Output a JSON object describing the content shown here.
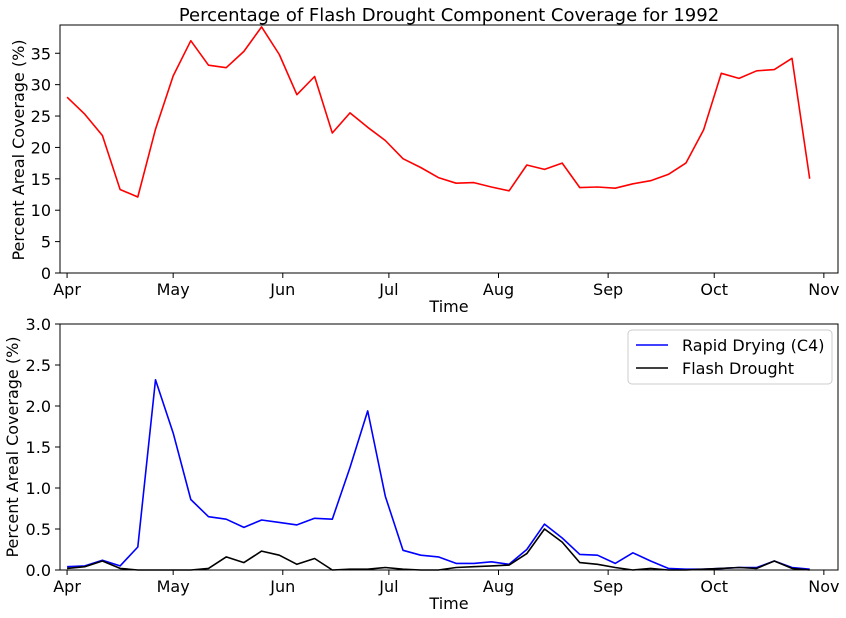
{
  "chart_data": [
    {
      "type": "line",
      "title": "Percentage of Flash Drought Component Coverage for 1992",
      "xlabel": "Time",
      "ylabel": "Percent Areal Coverage (%)",
      "x_tick_labels": [
        "Apr",
        "May",
        "Jun",
        "Jul",
        "Aug",
        "Sep",
        "Oct",
        "Nov"
      ],
      "xlim": [
        "1992-03-30",
        "1992-11-05"
      ],
      "ylim": [
        0,
        39.5
      ],
      "y_ticks": [
        0,
        5,
        10,
        15,
        20,
        25,
        30,
        35
      ],
      "grid": false,
      "series": [
        {
          "color": "#ff0000",
          "x": [
            "1992-04-01",
            "1992-04-06",
            "1992-04-11",
            "1992-04-16",
            "1992-04-21",
            "1992-04-26",
            "1992-05-01",
            "1992-05-06",
            "1992-05-11",
            "1992-05-16",
            "1992-05-21",
            "1992-05-26",
            "1992-05-31",
            "1992-06-05",
            "1992-06-10",
            "1992-06-15",
            "1992-06-20",
            "1992-06-25",
            "1992-06-30",
            "1992-07-05",
            "1992-07-10",
            "1992-07-15",
            "1992-07-20",
            "1992-07-25",
            "1992-07-30",
            "1992-08-04",
            "1992-08-09",
            "1992-08-14",
            "1992-08-19",
            "1992-08-24",
            "1992-08-29",
            "1992-09-03",
            "1992-09-08",
            "1992-09-13",
            "1992-09-18",
            "1992-09-23",
            "1992-09-28",
            "1992-10-03",
            "1992-10-08",
            "1992-10-13",
            "1992-10-18",
            "1992-10-23",
            "1992-10-28"
          ],
          "values": [
            28.0,
            25.3,
            21.9,
            13.3,
            12.1,
            22.9,
            31.4,
            37.0,
            33.1,
            32.7,
            35.3,
            39.2,
            34.8,
            28.4,
            31.3,
            22.3,
            25.5,
            23.2,
            21.1,
            18.2,
            16.8,
            15.2,
            14.3,
            14.4,
            13.7,
            13.1,
            17.2,
            16.5,
            17.5,
            13.6,
            13.7,
            13.5,
            14.2,
            14.7,
            15.7,
            17.5,
            22.8,
            31.8,
            31.0,
            32.2,
            32.4,
            34.2,
            15.0
          ]
        }
      ]
    },
    {
      "type": "line",
      "title": "",
      "xlabel": "Time",
      "ylabel": "Percent Areal Coverage (%)",
      "x_tick_labels": [
        "Apr",
        "May",
        "Jun",
        "Jul",
        "Aug",
        "Sep",
        "Oct",
        "Nov"
      ],
      "xlim": [
        "1992-03-30",
        "1992-11-05"
      ],
      "ylim": [
        0,
        3.0
      ],
      "y_ticks": [
        0.0,
        0.5,
        1.0,
        1.5,
        2.0,
        2.5,
        3.0
      ],
      "grid": false,
      "legend_position": "top-right",
      "series": [
        {
          "name": "Rapid Drying (C4)",
          "color": "#0000ff",
          "x": [
            "1992-04-01",
            "1992-04-06",
            "1992-04-11",
            "1992-04-16",
            "1992-04-21",
            "1992-04-26",
            "1992-05-01",
            "1992-05-06",
            "1992-05-11",
            "1992-05-16",
            "1992-05-21",
            "1992-05-26",
            "1992-05-31",
            "1992-06-05",
            "1992-06-10",
            "1992-06-15",
            "1992-06-20",
            "1992-06-25",
            "1992-06-30",
            "1992-07-05",
            "1992-07-10",
            "1992-07-15",
            "1992-07-20",
            "1992-07-25",
            "1992-07-30",
            "1992-08-04",
            "1992-08-09",
            "1992-08-14",
            "1992-08-19",
            "1992-08-24",
            "1992-08-29",
            "1992-09-03",
            "1992-09-08",
            "1992-09-13",
            "1992-09-18",
            "1992-09-23",
            "1992-09-28",
            "1992-10-03",
            "1992-10-08",
            "1992-10-13",
            "1992-10-18",
            "1992-10-23",
            "1992-10-28"
          ],
          "values": [
            0.04,
            0.05,
            0.12,
            0.05,
            0.28,
            2.32,
            1.67,
            0.86,
            0.65,
            0.62,
            0.52,
            0.61,
            0.58,
            0.55,
            0.63,
            0.62,
            1.25,
            1.94,
            0.9,
            0.24,
            0.18,
            0.16,
            0.08,
            0.08,
            0.1,
            0.07,
            0.25,
            0.56,
            0.39,
            0.19,
            0.18,
            0.08,
            0.21,
            0.11,
            0.02,
            0.01,
            0.01,
            0.02,
            0.03,
            0.03,
            0.11,
            0.03,
            0.01
          ]
        },
        {
          "name": "Flash Drought",
          "color": "#000000",
          "x": [
            "1992-04-01",
            "1992-04-06",
            "1992-04-11",
            "1992-04-16",
            "1992-04-21",
            "1992-04-26",
            "1992-05-01",
            "1992-05-06",
            "1992-05-11",
            "1992-05-16",
            "1992-05-21",
            "1992-05-26",
            "1992-05-31",
            "1992-06-05",
            "1992-06-10",
            "1992-06-15",
            "1992-06-20",
            "1992-06-25",
            "1992-06-30",
            "1992-07-05",
            "1992-07-10",
            "1992-07-15",
            "1992-07-20",
            "1992-07-25",
            "1992-07-30",
            "1992-08-04",
            "1992-08-09",
            "1992-08-14",
            "1992-08-19",
            "1992-08-24",
            "1992-08-29",
            "1992-09-03",
            "1992-09-08",
            "1992-09-13",
            "1992-09-18",
            "1992-09-23",
            "1992-09-28",
            "1992-10-03",
            "1992-10-08",
            "1992-10-13",
            "1992-10-18",
            "1992-10-23",
            "1992-10-28"
          ],
          "values": [
            0.02,
            0.04,
            0.11,
            0.02,
            0.0,
            0.0,
            0.0,
            0.0,
            0.02,
            0.16,
            0.09,
            0.23,
            0.18,
            0.07,
            0.14,
            0.0,
            0.01,
            0.01,
            0.03,
            0.01,
            0.0,
            0.0,
            0.03,
            0.04,
            0.05,
            0.06,
            0.2,
            0.5,
            0.34,
            0.09,
            0.07,
            0.03,
            0.0,
            0.02,
            0.0,
            0.0,
            0.01,
            0.02,
            0.03,
            0.02,
            0.11,
            0.02,
            0.0
          ]
        }
      ]
    }
  ]
}
